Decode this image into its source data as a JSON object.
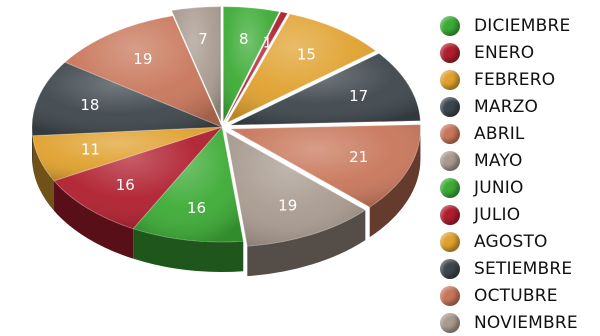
{
  "chart_data": {
    "type": "pie",
    "title": "",
    "categories": [
      "DICIEMBRE",
      "ENERO",
      "FEBRERO",
      "MARZO",
      "ABRIL",
      "MAYO",
      "JUNIO",
      "JULIO",
      "AGOSTO",
      "SETIEMBRE",
      "OCTUBRE",
      "NOVIEMBRE"
    ],
    "values": [
      8,
      1,
      15,
      17,
      21,
      19,
      16,
      16,
      11,
      18,
      19,
      7
    ],
    "value_labels": [
      "8",
      "1",
      "15",
      "17",
      "21",
      "19",
      "16",
      "16",
      "11",
      "18",
      "19",
      "7"
    ],
    "colors": [
      "#3cab35",
      "#b01e2e",
      "#e0a12e",
      "#3d464c",
      "#c8765a",
      "#a89a8f",
      "#3cab35",
      "#b01e2e",
      "#e0a12e",
      "#3d464c",
      "#c8765a",
      "#a89a8f"
    ],
    "exploded_slices": [
      "NOVIEMBRE",
      "DICIEMBRE",
      "ENERO",
      "FEBRERO",
      "MARZO",
      "ABRIL",
      "MAYO"
    ],
    "legend_position": "right"
  }
}
